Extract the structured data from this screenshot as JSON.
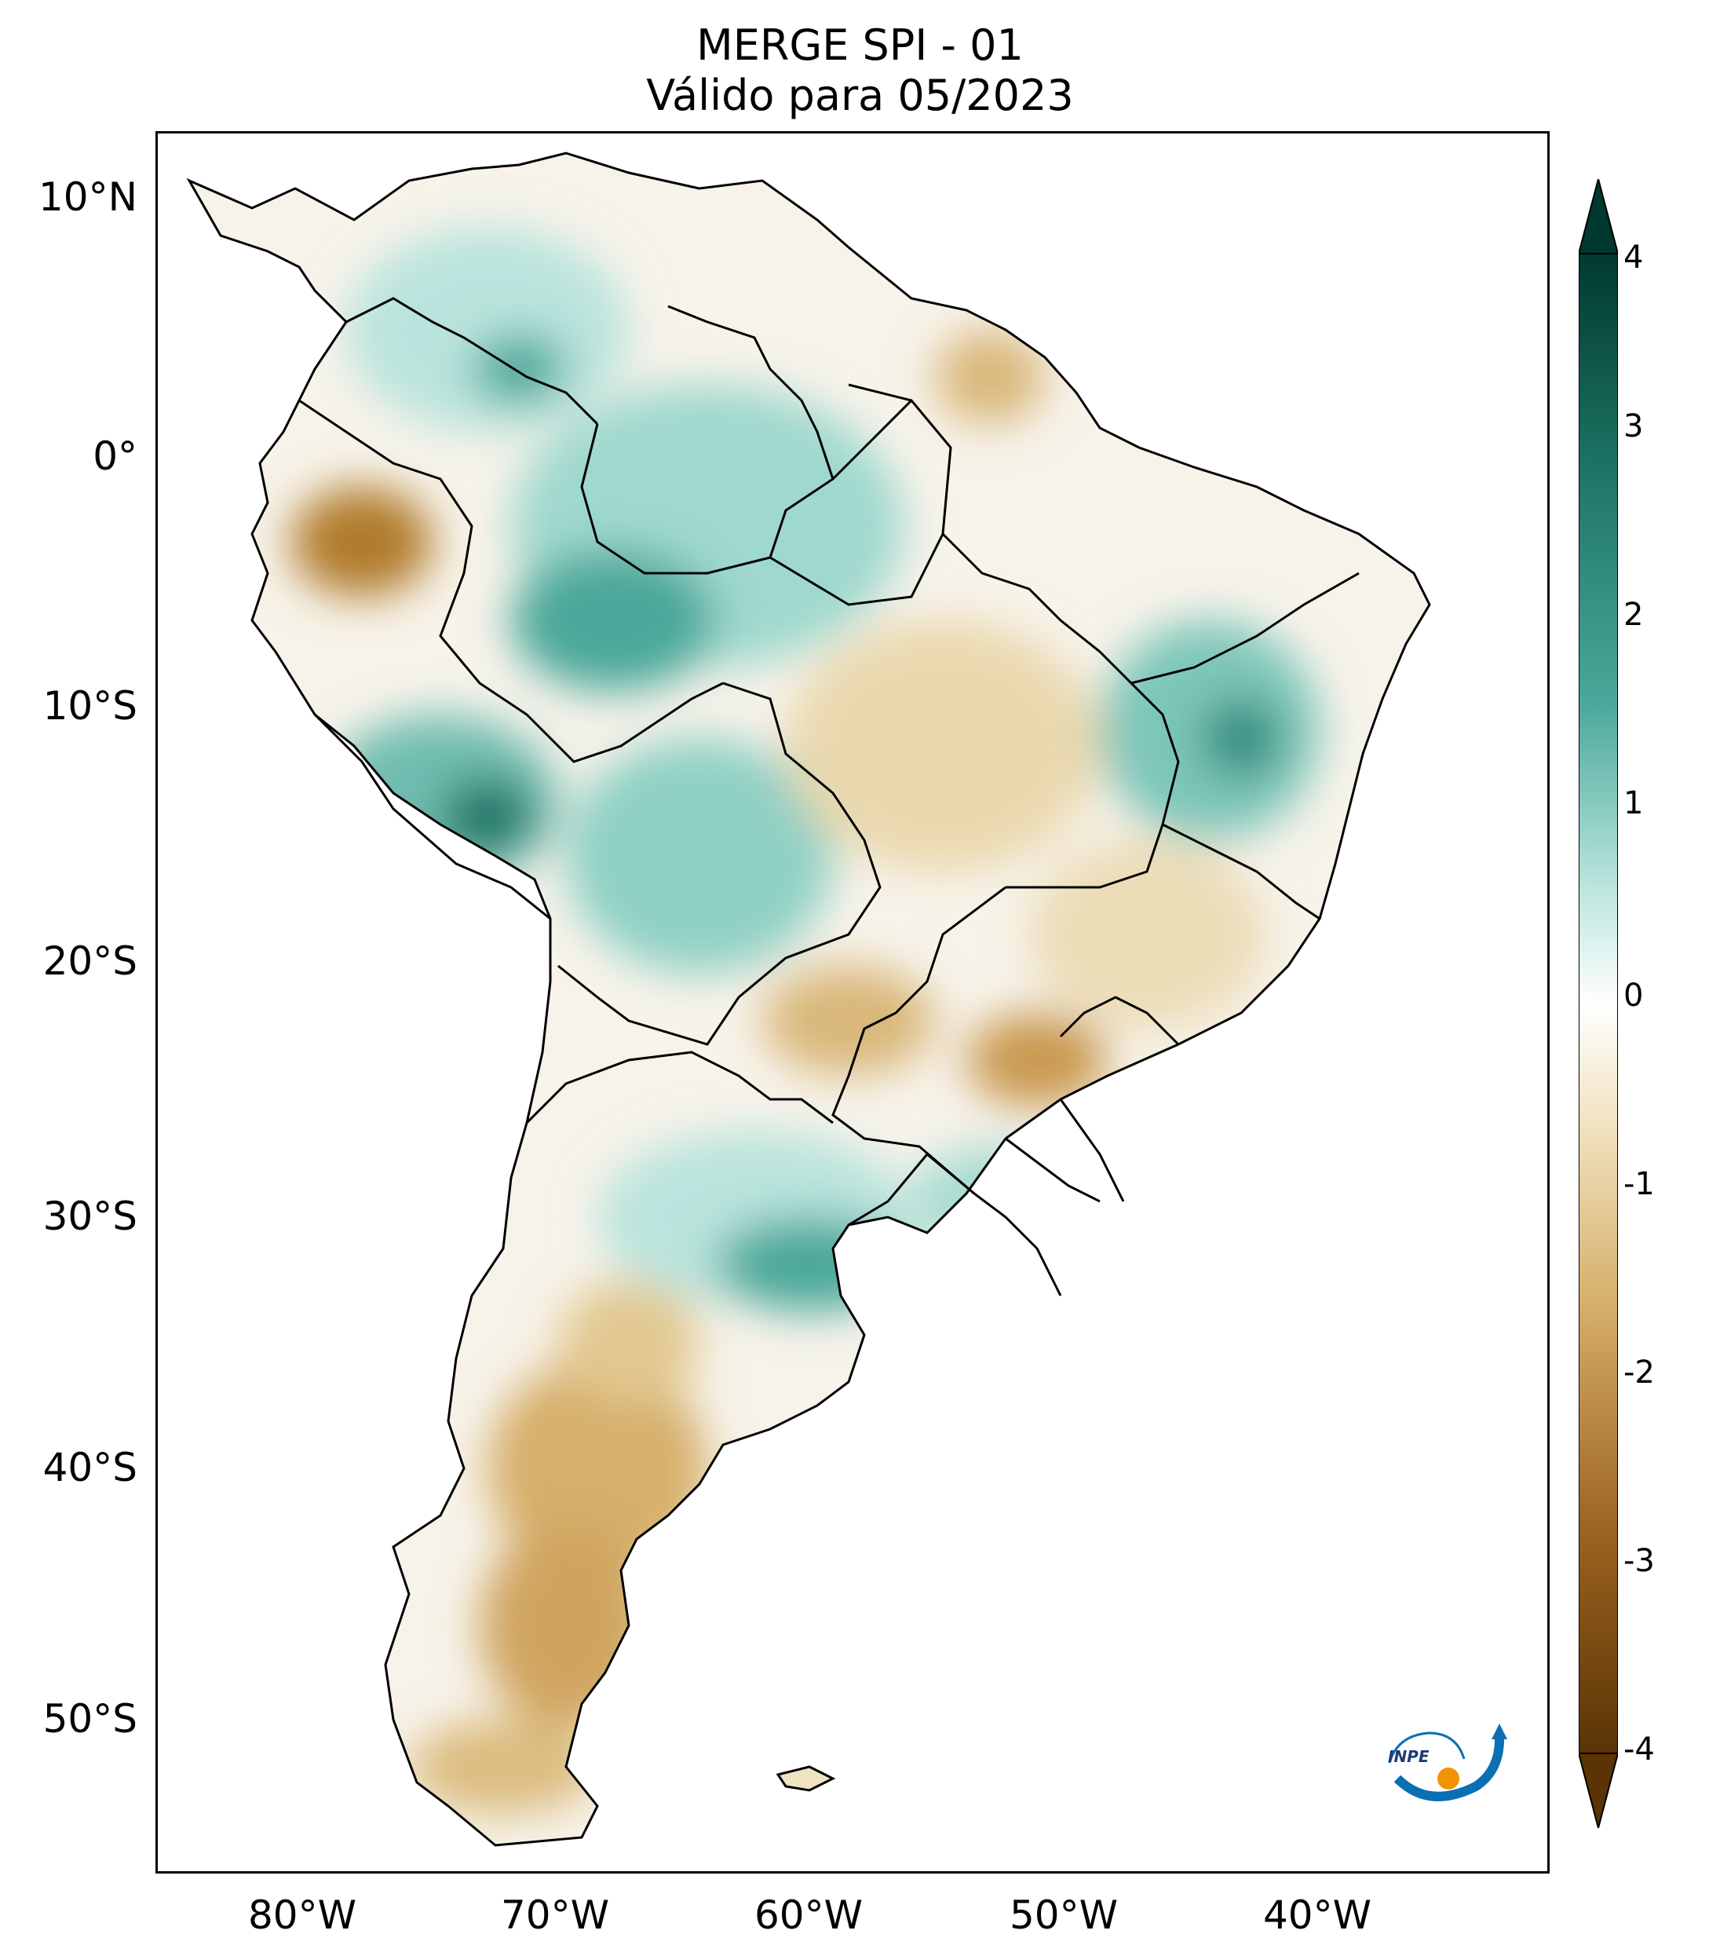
{
  "title": {
    "line1": "MERGE   SPI - 01",
    "line2": "Válido para 05/2023"
  },
  "axes": {
    "lat_labels": [
      "10°N",
      "0°",
      "10°S",
      "20°S",
      "30°S",
      "40°S",
      "50°S"
    ],
    "lon_labels": [
      "80°W",
      "70°W",
      "60°W",
      "50°W",
      "40°W"
    ]
  },
  "colorbar": {
    "ticks": [
      "4",
      "3",
      "2",
      "1",
      "0",
      "-1",
      "-2",
      "-3",
      "-4"
    ],
    "min": -4,
    "max": 4,
    "colors": {
      "dry_extreme": "#5a3405",
      "dry": "#b07a2c",
      "dry_light": "#e3cb92",
      "neutral": "#ffffff",
      "wet_light": "#b9e4dd",
      "wet": "#4aa89a",
      "wet_extreme": "#00392f"
    }
  },
  "logo": {
    "text": "INPE"
  }
}
